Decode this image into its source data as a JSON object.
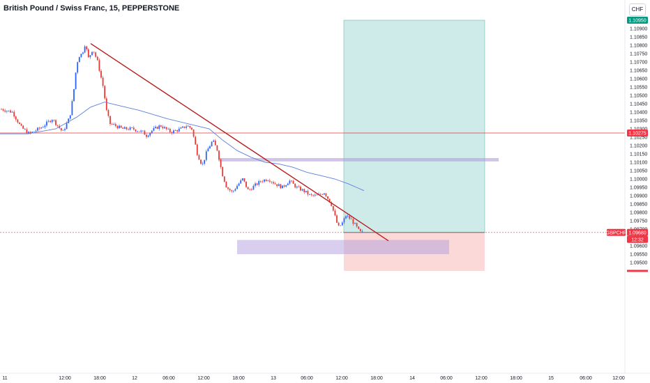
{
  "header": {
    "title": "British Pound / Swiss Franc, 15, PEPPERSTONE",
    "currency_button": "CHF"
  },
  "colors": {
    "bull": "#2962ff",
    "bear": "#e53935",
    "ma": "#5b7fe0",
    "trendline": "#b71c1c",
    "hline": "#e53935",
    "target_zone": "#26a69a",
    "stop_zone": "#ef5350",
    "zone_purple": "#b39ddb",
    "tag_green": "#089981",
    "tag_red": "#f23645"
  },
  "price_scale": {
    "ticks": [
      "1.10900",
      "1.10850",
      "1.10800",
      "1.10750",
      "1.10700",
      "1.10650",
      "1.10600",
      "1.10550",
      "1.10500",
      "1.10450",
      "1.10400",
      "1.10350",
      "1.10300",
      "1.10250",
      "1.10200",
      "1.10150",
      "1.10100",
      "1.10050",
      "1.10000",
      "1.09950",
      "1.09900",
      "1.09850",
      "1.09800",
      "1.09750",
      "1.09700",
      "1.09650",
      "1.09600",
      "1.09550",
      "1.09500"
    ],
    "target_tag": "1.10950",
    "level_tag": "1.10275",
    "symbol_tag": "GBPCHF",
    "price_tag": "1.09680",
    "countdown_tag": "12:32"
  },
  "time_scale": {
    "ticks": [
      "11",
      "12:00",
      "18:00",
      "12",
      "06:00",
      "12:00",
      "18:00",
      "13",
      "06:00",
      "12:00",
      "18:00",
      "14",
      "06:00",
      "12:00",
      "18:00",
      "15",
      "06:00",
      "12:00"
    ]
  },
  "chart_data": {
    "type": "candlestick",
    "symbol": "GBPCHF",
    "interval": "15",
    "ylim": [
      1.09465,
      1.1098
    ],
    "price_series": [
      [
        0,
        1.1042
      ],
      [
        18,
        1.104
      ],
      [
        30,
        1.1031
      ],
      [
        42,
        1.1027
      ],
      [
        60,
        1.1031
      ],
      [
        75,
        1.1036
      ],
      [
        90,
        1.1028
      ],
      [
        100,
        1.1037
      ],
      [
        105,
        1.105
      ],
      [
        110,
        1.1069
      ],
      [
        114,
        1.1074
      ],
      [
        118,
        1.1075
      ],
      [
        122,
        1.1081
      ],
      [
        127,
        1.1072
      ],
      [
        133,
        1.1078
      ],
      [
        140,
        1.107
      ],
      [
        148,
        1.1055
      ],
      [
        153,
        1.104
      ],
      [
        158,
        1.1033
      ],
      [
        165,
        1.1032
      ],
      [
        175,
        1.103
      ],
      [
        190,
        1.103
      ],
      [
        205,
        1.1028
      ],
      [
        210,
        1.1026
      ],
      [
        218,
        1.1029
      ],
      [
        230,
        1.1032
      ],
      [
        245,
        1.1028
      ],
      [
        260,
        1.103
      ],
      [
        268,
        1.1032
      ],
      [
        275,
        1.103
      ],
      [
        283,
        1.1015
      ],
      [
        290,
        1.1008
      ],
      [
        297,
        1.1017
      ],
      [
        305,
        1.1023
      ],
      [
        312,
        1.1017
      ],
      [
        318,
        1.1004
      ],
      [
        325,
        1.0995
      ],
      [
        333,
        1.0992
      ],
      [
        340,
        1.0996
      ],
      [
        348,
        1.1
      ],
      [
        356,
        1.0993
      ],
      [
        365,
        1.0996
      ],
      [
        375,
        1.0999
      ],
      [
        385,
        1.1
      ],
      [
        395,
        1.0997
      ],
      [
        405,
        1.0995
      ],
      [
        415,
        1.0999
      ],
      [
        425,
        1.0995
      ],
      [
        435,
        1.0993
      ],
      [
        445,
        1.099
      ],
      [
        455,
        1.099
      ],
      [
        465,
        1.0992
      ],
      [
        475,
        1.0985
      ],
      [
        480,
        1.0978
      ],
      [
        485,
        1.0971
      ],
      [
        490,
        1.0973
      ],
      [
        496,
        1.0978
      ],
      [
        503,
        1.0976
      ],
      [
        510,
        1.0972
      ],
      [
        516,
        1.0968
      ],
      [
        522,
        1.0968
      ]
    ],
    "moving_average": [
      [
        0,
        1.1027
      ],
      [
        40,
        1.1027
      ],
      [
        80,
        1.103
      ],
      [
        110,
        1.1037
      ],
      [
        130,
        1.1043
      ],
      [
        150,
        1.1046
      ],
      [
        170,
        1.1044
      ],
      [
        200,
        1.1041
      ],
      [
        240,
        1.1036
      ],
      [
        270,
        1.1033
      ],
      [
        300,
        1.103
      ],
      [
        320,
        1.1023
      ],
      [
        340,
        1.1017
      ],
      [
        360,
        1.1013
      ],
      [
        380,
        1.101
      ],
      [
        400,
        1.1009
      ],
      [
        420,
        1.1007
      ],
      [
        440,
        1.1004
      ],
      [
        460,
        1.1002
      ],
      [
        480,
        1.1
      ],
      [
        500,
        1.0997
      ],
      [
        522,
        1.0993
      ]
    ],
    "trendline": {
      "from": [
        130,
        1.1081
      ],
      "to": [
        557,
        1.0963
      ]
    },
    "horizontal_line": 1.10275,
    "current_price_line": 1.0968,
    "long_position": {
      "x_start": 493,
      "x_end": 695,
      "entry": 1.0968,
      "target": 1.1095,
      "stop": 1.0945
    },
    "supply_zone": {
      "x_start": 313,
      "x_end": 715,
      "top": 1.10125,
      "bottom": 1.10105
    },
    "demand_zone": {
      "x_start": 340,
      "x_end": 644,
      "top": 1.09635,
      "bottom": 1.0955
    }
  }
}
